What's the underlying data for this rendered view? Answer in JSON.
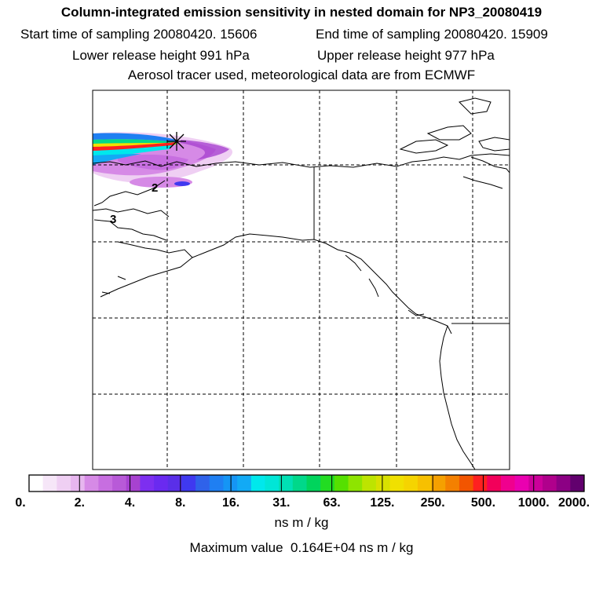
{
  "header": {
    "title": "Column-integrated emission sensitivity in nested domain for NP3_20080419",
    "start_label": "Start time of sampling 20080420. 15606",
    "end_label": "End time of sampling 20080420. 15909",
    "lower_label": "Lower release height  991 hPa",
    "upper_label": "Upper release height  977 hPa",
    "aerosol_label": "Aerosol tracer used, meteorological data are from ECMWF"
  },
  "map": {
    "markers": [
      {
        "id": "2",
        "label": "2"
      },
      {
        "id": "3",
        "label": "3"
      }
    ],
    "release_marker": "asterisk-icon"
  },
  "colorbar": {
    "labels": [
      "0.",
      "2.",
      "4.",
      "8.",
      "16.",
      "31.",
      "63.",
      "125.",
      "250.",
      "500.",
      "1000.",
      "2000."
    ],
    "colors": [
      "#ffffff",
      "#f6e6f8",
      "#efcff3",
      "#e7b6ef",
      "#d68ae6",
      "#c76ee0",
      "#b85ad8",
      "#a742d0",
      "#7d2ff0",
      "#6a2af0",
      "#5a2fe8",
      "#3f39f0",
      "#2f62ea",
      "#1f7ff2",
      "#1595f5",
      "#12aaf5",
      "#00e8ec",
      "#00e6d7",
      "#00e0b4",
      "#00d88a",
      "#00d45c",
      "#22dc22",
      "#55e000",
      "#8ee400",
      "#bde400",
      "#d8e000",
      "#f0e000",
      "#f5d400",
      "#f7c000",
      "#f5a000",
      "#f48000",
      "#f25500",
      "#ff2020",
      "#f2005a",
      "#f0008e",
      "#ea00b0",
      "#cc009a",
      "#b0008c",
      "#8c0084",
      "#62006e"
    ],
    "units": "ns m / kg"
  },
  "footer": {
    "max_label": "Maximum value",
    "max_value": "0.164E+04",
    "max_units": "ns m / kg"
  }
}
